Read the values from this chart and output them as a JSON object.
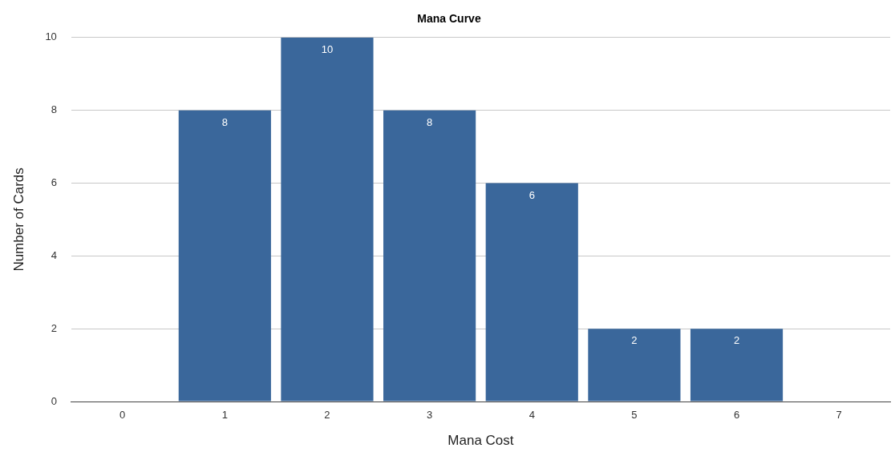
{
  "chart_data": {
    "type": "bar",
    "title": "Mana Curve",
    "xlabel": "Mana Cost",
    "ylabel": "Number of Cards",
    "categories": [
      "0",
      "1",
      "2",
      "3",
      "4",
      "5",
      "6",
      "7"
    ],
    "values": [
      0,
      8,
      10,
      8,
      6,
      2,
      2,
      0
    ],
    "value_labels": [
      null,
      "8",
      "10",
      "8",
      "6",
      "2",
      "2",
      null
    ],
    "color": "#3a679b",
    "ylim": [
      0,
      10
    ],
    "yticks": [
      0,
      2,
      4,
      6,
      8,
      10
    ],
    "grid": "y",
    "legend": false
  }
}
